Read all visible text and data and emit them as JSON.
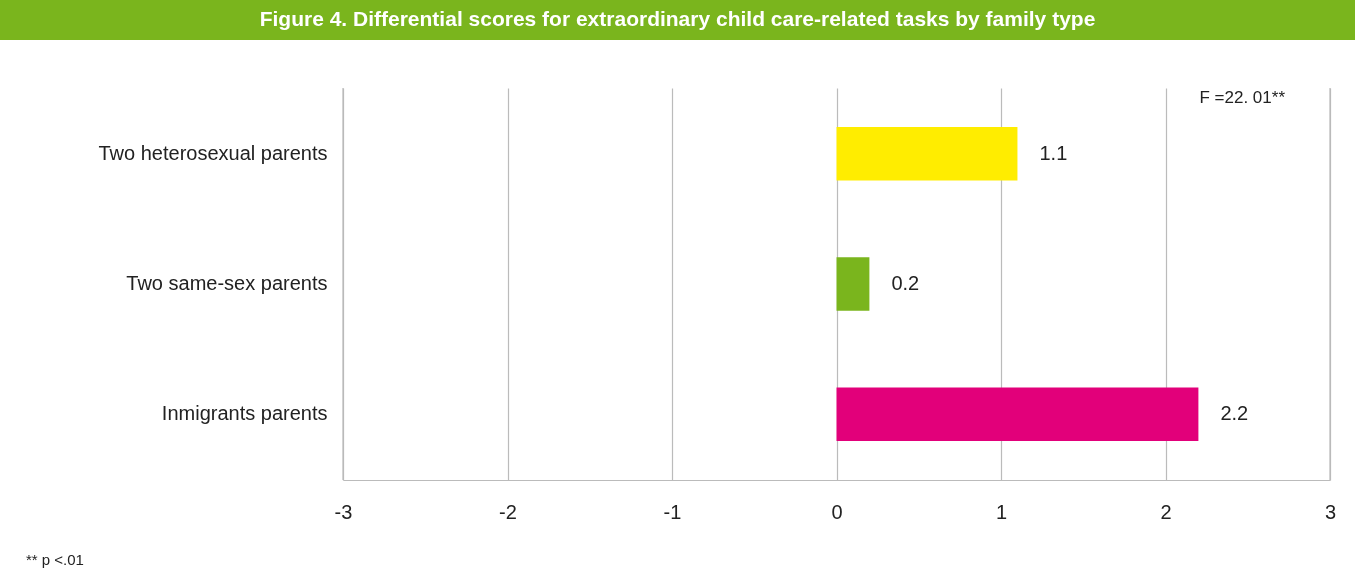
{
  "chart_data": {
    "type": "bar",
    "orientation": "horizontal",
    "title": "Figure 4. Differential scores for extraordinary child care-related tasks by family type",
    "categories": [
      "Two heterosexual parents",
      "Two same-sex parents",
      "Inmigrants parents"
    ],
    "values": [
      1.1,
      0.2,
      2.2
    ],
    "colors": [
      "#ffed00",
      "#7ab51d",
      "#e2007a"
    ],
    "xlim": [
      -3,
      3
    ],
    "xticks": [
      -3,
      -2,
      -1,
      0,
      1,
      2,
      3
    ],
    "grid": "x",
    "data_labels": true,
    "annotations": [
      "F =22. 01**",
      "** p <.01"
    ]
  }
}
